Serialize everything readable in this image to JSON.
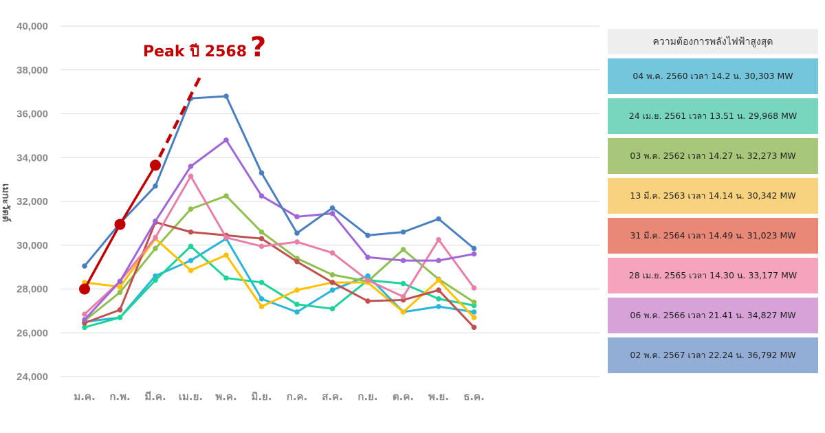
{
  "chart_data": {
    "type": "line",
    "title": "",
    "xlabel": "",
    "ylabel": "เมกะวัตต์",
    "ylim": [
      24000,
      40000
    ],
    "yticks": [
      24000,
      26000,
      28000,
      30000,
      32000,
      34000,
      36000,
      38000,
      40000
    ],
    "ytick_labels": [
      "24,000",
      "26,000",
      "28,000",
      "30,000",
      "32,000",
      "34,000",
      "36,000",
      "38,000",
      "40,000"
    ],
    "grid": true,
    "legend_placement": "right",
    "legend_title": "ความต้องการพลังไฟฟ้าสูงสุด",
    "categories": [
      "ม.ค.",
      "ก.พ.",
      "มี.ค.",
      "เม.ย.",
      "พ.ค.",
      "มิ.ย.",
      "ก.ค.",
      "ส.ค.",
      "ก.ย.",
      "ต.ค.",
      "พ.ย.",
      "ธ.ค."
    ],
    "series": [
      {
        "name": "04 พ.ค. 2560 เวลา 14.2 น. 30,303 MW",
        "color": "#29b6d9",
        "values": [
          26500,
          26700,
          28600,
          29300,
          30300,
          27550,
          26950,
          27950,
          28600,
          26950,
          27200,
          26950
        ]
      },
      {
        "name": "24 เม.ย. 2561 เวลา 13.51 น. 29,968 MW",
        "color": "#1dd39a",
        "values": [
          26250,
          26700,
          28400,
          29950,
          28500,
          28300,
          27300,
          27100,
          28400,
          28250,
          27550,
          27250
        ]
      },
      {
        "name": "03 พ.ค. 2562 เวลา 14.27 น. 32,273 MW",
        "color": "#8fbf4f",
        "values": [
          26550,
          27850,
          29850,
          31650,
          32250,
          30600,
          29400,
          28650,
          28350,
          29800,
          28450,
          27400
        ]
      },
      {
        "name": "13 มี.ค. 2563 เวลา 14.14 น. 30,342 MW",
        "color": "#ffc000",
        "values": [
          28300,
          28100,
          30300,
          28850,
          29550,
          27200,
          27950,
          28300,
          28300,
          26950,
          28400,
          26700
        ]
      },
      {
        "name": "31 มี.ค. 2564 เวลา 14.49 น. 31,023 MW",
        "color": "#c0504d",
        "values": [
          26450,
          27050,
          31050,
          30600,
          30450,
          30300,
          29250,
          28300,
          27450,
          27500,
          27950,
          26250
        ]
      },
      {
        "name": "28 เม.ย. 2565 เวลา 14.30 น. 33,177 MW",
        "color": "#e87fa8",
        "values": [
          26850,
          28350,
          30350,
          33150,
          30350,
          29950,
          30150,
          29650,
          28400,
          27650,
          30250,
          28050
        ]
      },
      {
        "name": "06 พ.ค. 2566 เวลา 21.41 น. 34,827 MW",
        "color": "#a066d8",
        "values": [
          26600,
          28350,
          31100,
          33600,
          34800,
          32250,
          31300,
          31450,
          29450,
          29300,
          29300,
          29600
        ]
      },
      {
        "name": "02 พ.ค. 2567 เวลา 22.24 น. 36,792 MW",
        "color": "#4a7fbf",
        "values": [
          29050,
          31000,
          32700,
          36700,
          36800,
          33300,
          30550,
          31700,
          30450,
          30600,
          31200,
          29850
        ]
      }
    ],
    "forecast_2568": {
      "color": "#c00000",
      "actual_x_index": [
        0,
        1,
        2
      ],
      "values": [
        28000,
        30950,
        33650
      ],
      "dashed_extension": {
        "from": [
          2,
          33650
        ],
        "to": [
          3.3,
          37800
        ]
      },
      "annotation": "Peak ปี 2568",
      "annotation_mark": "?"
    }
  },
  "legend": {
    "title": "ความต้องการพลังไฟฟ้าสูงสุด",
    "items": [
      {
        "label": "04 พ.ค. 2560 เวลา 14.2 น. 30,303 MW",
        "bg": "#74c6dd"
      },
      {
        "label": "24 เม.ย. 2561 เวลา 13.51 น. 29,968 MW",
        "bg": "#77d6bd"
      },
      {
        "label": "03 พ.ค. 2562 เวลา 14.27 น. 32,273 MW",
        "bg": "#a8c77a"
      },
      {
        "label": "13 มี.ค. 2563 เวลา 14.14 น. 30,342 MW",
        "bg": "#f8d27f"
      },
      {
        "label": "31 มี.ค. 2564 เวลา 14.49 น. 31,023 MW",
        "bg": "#ea8877"
      },
      {
        "label": "28 เม.ย. 2565 เวลา 14.30 น. 33,177 MW",
        "bg": "#f6a3bd"
      },
      {
        "label": "06 พ.ค. 2566 เวลา 21.41 น. 34,827 MW",
        "bg": "#d6a2d8"
      },
      {
        "label": "02 พ.ค. 2567 เวลา 22.24 น. 36,792 MW",
        "bg": "#93aed6"
      }
    ]
  }
}
